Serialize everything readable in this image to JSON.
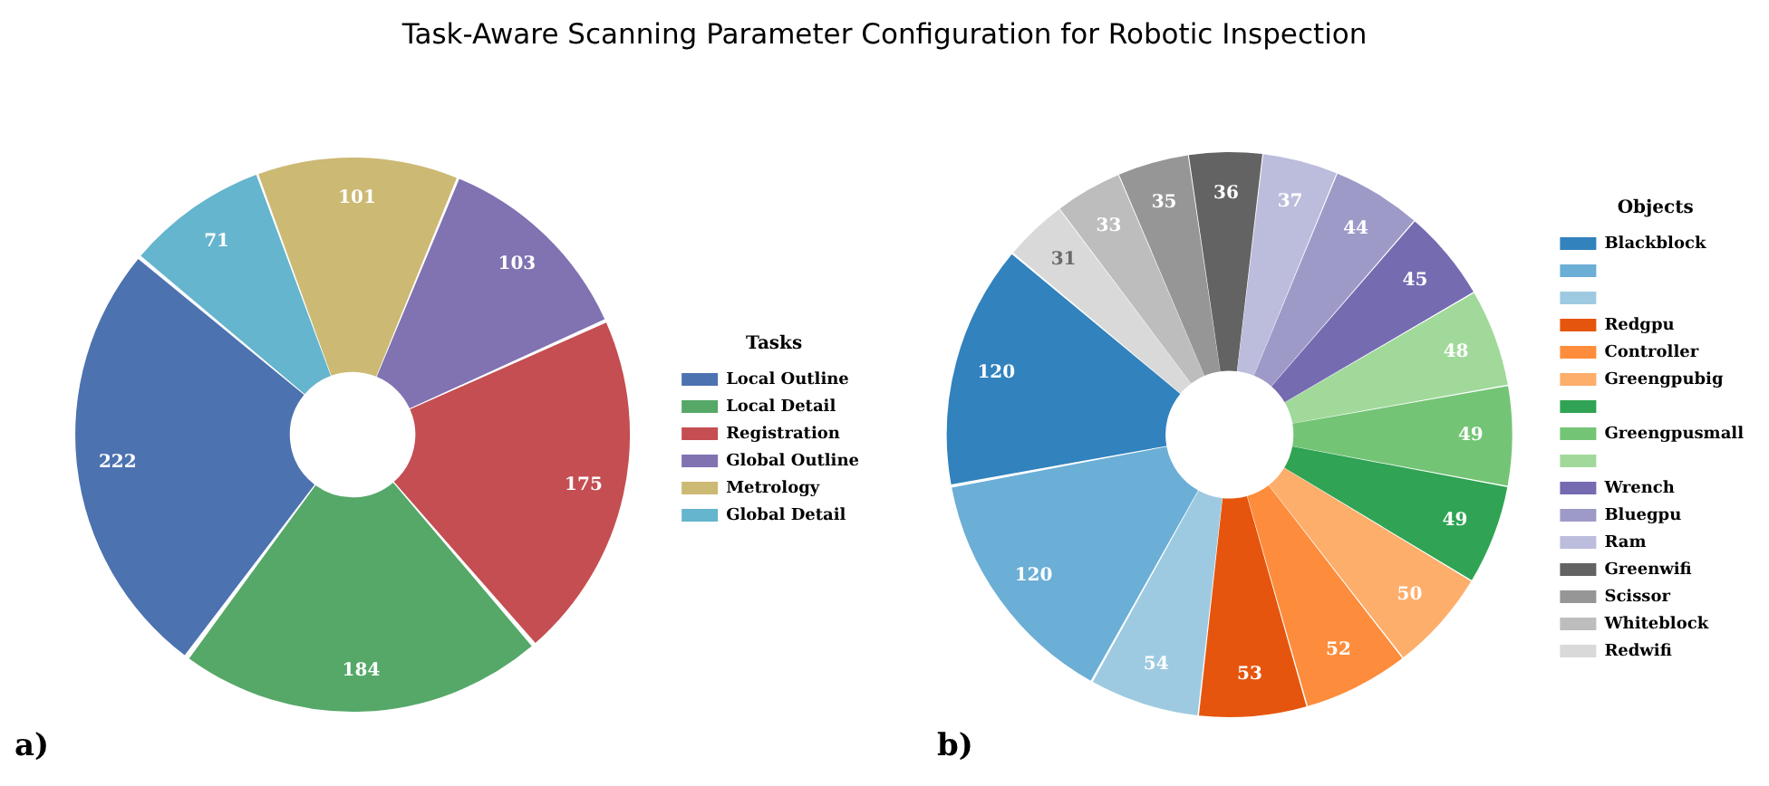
{
  "chart_data": [
    {
      "type": "donut",
      "title": "Task-Aware Scanning Parameter Configuration for Robotic Inspection",
      "legend_title": "Tasks",
      "categories": [
        "Local Outline",
        "Local Detail",
        "Registration",
        "Global Outline",
        "Metrology",
        "Global Detail"
      ],
      "values": [
        222,
        184,
        175,
        103,
        101,
        71
      ],
      "colors": [
        "#4c72b0",
        "#55a868",
        "#c44e52",
        "#8172b2",
        "#ccb974",
        "#64b5cd"
      ],
      "data_labels": true,
      "legend": "right",
      "annotations": [
        "a)"
      ]
    },
    {
      "type": "donut",
      "legend_title": "Objects",
      "categories": [
        "Blackblock",
        null,
        null,
        "Redgpu",
        "Controller",
        "Greengpubig",
        null,
        "Greengpusmall",
        null,
        "Wrench",
        "Bluegpu",
        "Ram",
        "Greenwifi",
        "Scissor",
        "Whiteblock",
        "Redwifi"
      ],
      "values": [
        120,
        120,
        54,
        53,
        52,
        50,
        49,
        49,
        48,
        45,
        44,
        37,
        36,
        35,
        33,
        31
      ],
      "colors": [
        "#3182bd",
        "#6baed6",
        "#9ecae1",
        "#e6550d",
        "#fd8d3c",
        "#fdae6b",
        "#31a354",
        "#74c476",
        "#a1d99b",
        "#756bb1",
        "#9e9ac8",
        "#bcbddc",
        "#636363",
        "#969696",
        "#bdbdbd",
        "#d9d9d9"
      ],
      "data_labels": true,
      "legend": "right",
      "annotations": [
        "b)"
      ]
    }
  ]
}
